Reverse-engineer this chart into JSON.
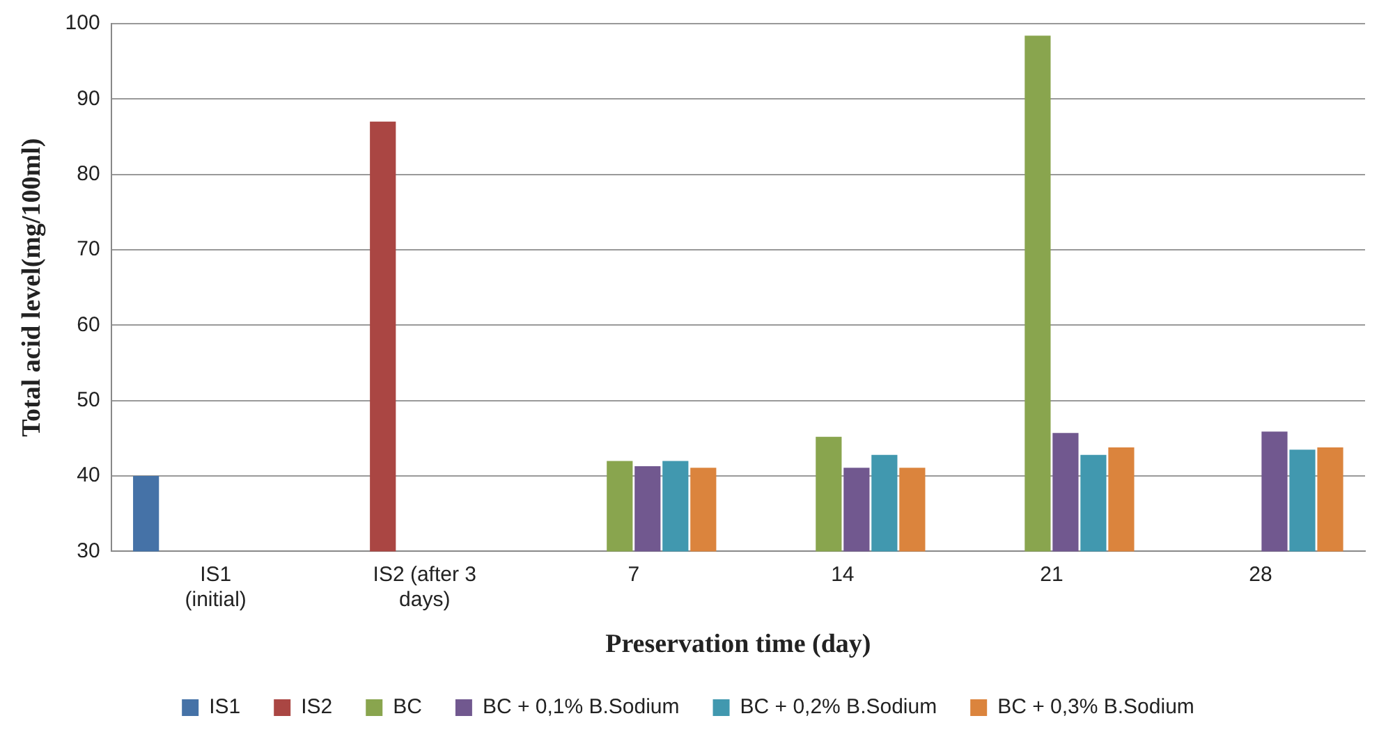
{
  "chart_data": {
    "type": "bar",
    "xlabel": "Preservation time (day)",
    "ylabel": "Total acid level(mg/100ml)",
    "categories": [
      "IS1 (initial)",
      "IS2 (after 3 days)",
      "7",
      "14",
      "21",
      "28"
    ],
    "series": [
      {
        "name": "IS1",
        "color": "#4572a7",
        "values": [
          40,
          null,
          null,
          null,
          null,
          null
        ]
      },
      {
        "name": "IS2",
        "color": "#aa4643",
        "values": [
          null,
          87,
          null,
          null,
          null,
          null
        ]
      },
      {
        "name": "BC",
        "color": "#89a54e",
        "values": [
          null,
          null,
          42,
          45.2,
          98.4,
          null
        ]
      },
      {
        "name": "BC + 0,1% B.Sodium",
        "color": "#71588f",
        "values": [
          null,
          null,
          41.3,
          41.1,
          45.7,
          45.9
        ]
      },
      {
        "name": "BC + 0,2% B.Sodium",
        "color": "#4198af",
        "values": [
          null,
          null,
          42,
          42.8,
          42.8,
          43.5
        ]
      },
      {
        "name": "BC + 0,3% B.Sodium",
        "color": "#db843d",
        "values": [
          null,
          null,
          41.1,
          41.1,
          43.8,
          43.8
        ]
      }
    ],
    "ylim": [
      30,
      100
    ],
    "yticks": [
      30,
      40,
      50,
      60,
      70,
      80,
      90,
      100
    ],
    "grid": "y",
    "legend": "bottom"
  }
}
